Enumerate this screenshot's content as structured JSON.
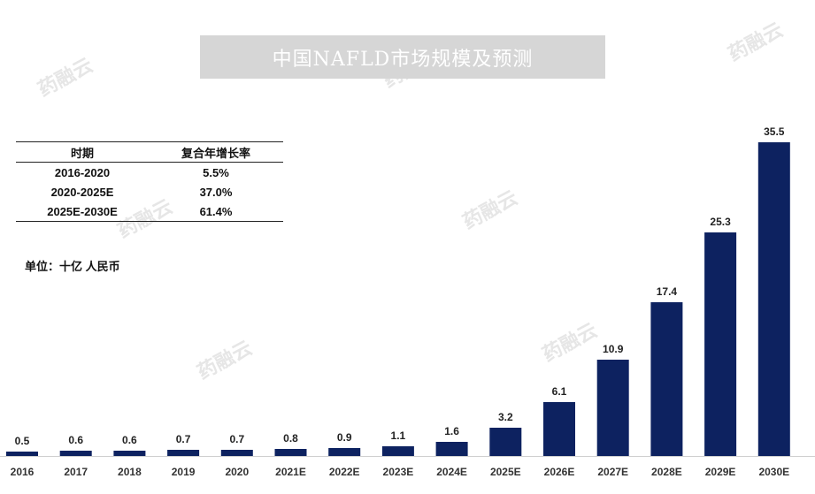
{
  "title": "中国NAFLD市场规模及预测",
  "unit_label": "单位：十亿 人民币",
  "cagr_table": {
    "headers": [
      "时期",
      "复合年增长率"
    ],
    "rows": [
      [
        "2016-2020",
        "5.5%"
      ],
      [
        "2020-2025E",
        "37.0%"
      ],
      [
        "2025E-2030E",
        "61.4%"
      ]
    ]
  },
  "watermark": "药融云",
  "colors": {
    "bar": "#0d2260",
    "title_bg": "#d6d6d6"
  },
  "chart_data": {
    "type": "bar",
    "categories": [
      "2016",
      "2017",
      "2018",
      "2019",
      "2020",
      "2021E",
      "2022E",
      "2023E",
      "2024E",
      "2025E",
      "2026E",
      "2027E",
      "2028E",
      "2029E",
      "2030E"
    ],
    "values": [
      0.5,
      0.6,
      0.6,
      0.7,
      0.7,
      0.8,
      0.9,
      1.1,
      1.6,
      3.2,
      6.1,
      10.9,
      17.4,
      25.3,
      35.5
    ],
    "data_labels": [
      "0.5",
      "0.6",
      "0.6",
      "0.7",
      "0.7",
      "0.8",
      "0.9",
      "1.1",
      "1.6",
      "3.2",
      "6.1",
      "10.9",
      "17.4",
      "25.3",
      "35.5"
    ],
    "ylim": [
      0,
      35.5
    ],
    "grid": false
  }
}
